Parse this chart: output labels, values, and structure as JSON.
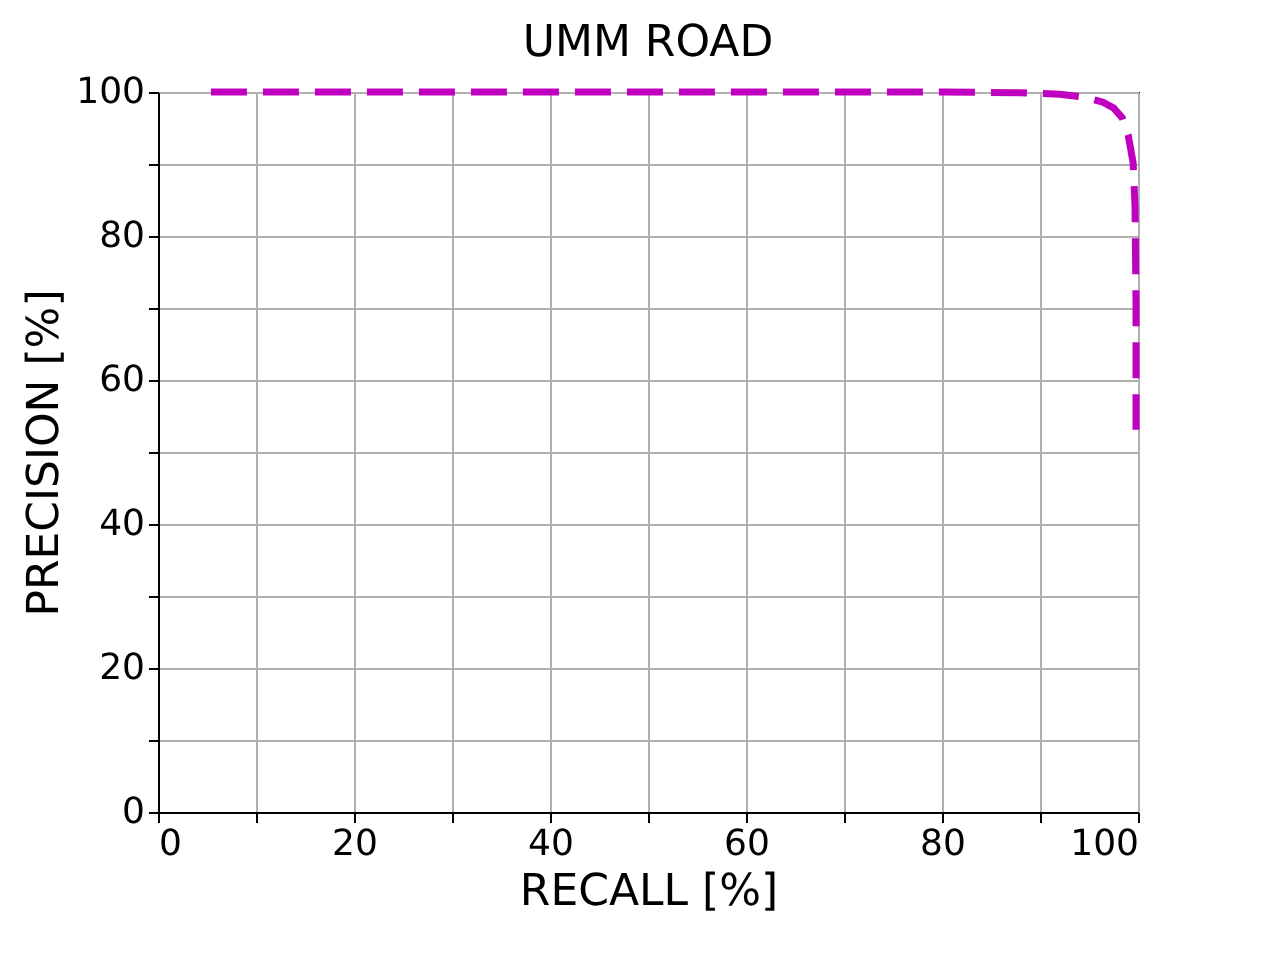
{
  "chart_data": {
    "type": "line",
    "title": "UMM ROAD",
    "xlabel": "RECALL [%]",
    "ylabel": "PRECISION [%]",
    "series": [
      {
        "color": "#bf00bf",
        "x": [
          5.4,
          20,
          40,
          60,
          80,
          88,
          92,
          94.5,
          96.4,
          97.5,
          98.4,
          99,
          99.5,
          99.7,
          99.8,
          99.8
        ],
        "values": [
          100,
          100,
          100,
          100,
          100,
          99.9,
          99.7,
          99.3,
          98.6,
          97.8,
          96.4,
          94,
          90.2,
          84,
          70,
          53.1
        ]
      }
    ],
    "xlim": [
      0,
      100
    ],
    "ylim": [
      0,
      100
    ],
    "xticks": [
      0,
      {
        "value": 10,
        "label": null
      },
      20,
      {
        "value": 30,
        "label": null
      },
      40,
      {
        "value": 50,
        "label": null
      },
      60,
      {
        "value": 70,
        "label": null
      },
      80,
      {
        "value": 90,
        "label": null
      },
      100
    ],
    "yticks": [
      0,
      {
        "value": 10,
        "label": null
      },
      20,
      {
        "value": 30,
        "label": null
      },
      40,
      {
        "value": 50,
        "label": null
      },
      60,
      {
        "value": 70,
        "label": null
      },
      80,
      {
        "value": 90,
        "label": null
      },
      100
    ],
    "grid": true,
    "line_style": "dashed",
    "marker": "none"
  }
}
